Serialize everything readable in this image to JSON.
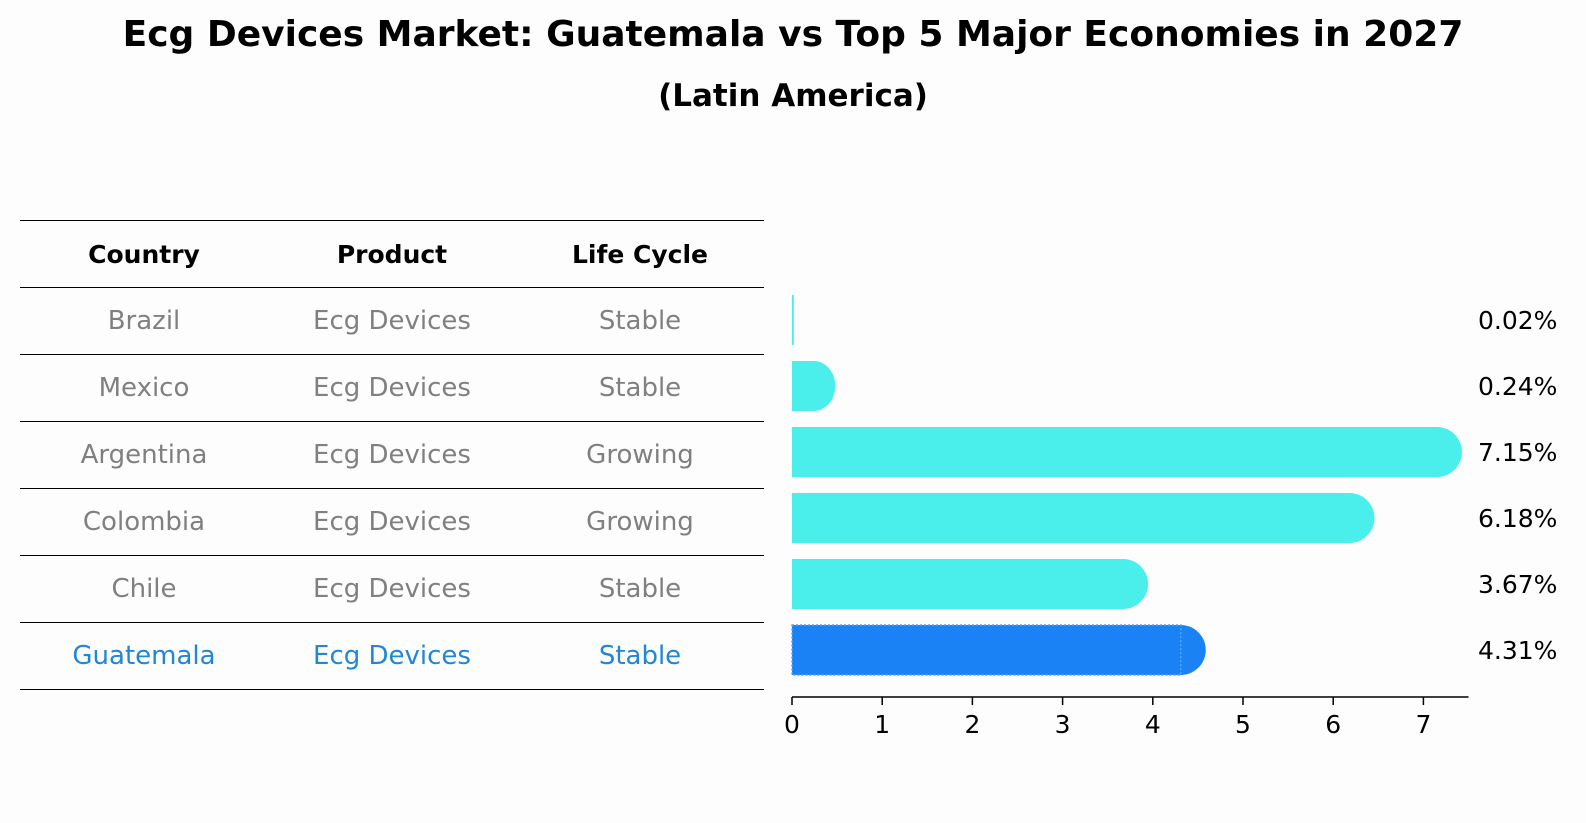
{
  "title": "Ecg Devices Market: Guatemala vs Top 5 Major Economies in 2027",
  "subtitle": "(Latin America)",
  "table": {
    "headers": [
      "Country",
      "Product",
      "Life Cycle"
    ],
    "rows": [
      [
        "Brazil",
        "Ecg Devices",
        "Stable"
      ],
      [
        "Mexico",
        "Ecg Devices",
        "Stable"
      ],
      [
        "Argentina",
        "Ecg Devices",
        "Growing"
      ],
      [
        "Colombia",
        "Ecg Devices",
        "Growing"
      ],
      [
        "Chile",
        "Ecg Devices",
        "Stable"
      ],
      [
        "Guatemala",
        "Ecg Devices",
        "Stable"
      ]
    ]
  },
  "colors": {
    "bar": "#4aeeea",
    "highlight_bar": "#1a82f5",
    "highlight_text": "#1f87d6",
    "muted_text": "#808080"
  },
  "chart_data": {
    "type": "bar",
    "orientation": "horizontal",
    "categories": [
      "Brazil",
      "Mexico",
      "Argentina",
      "Colombia",
      "Chile",
      "Guatemala"
    ],
    "values": [
      0.02,
      0.24,
      7.15,
      6.18,
      3.67,
      4.31
    ],
    "value_labels": [
      "0.02%",
      "0.24%",
      "7.15%",
      "6.18%",
      "3.67%",
      "4.31%"
    ],
    "highlight": "Guatemala",
    "xlim": [
      0,
      7.5
    ],
    "xticks": [
      0,
      1,
      2,
      3,
      4,
      5,
      6,
      7
    ],
    "grid": false
  }
}
